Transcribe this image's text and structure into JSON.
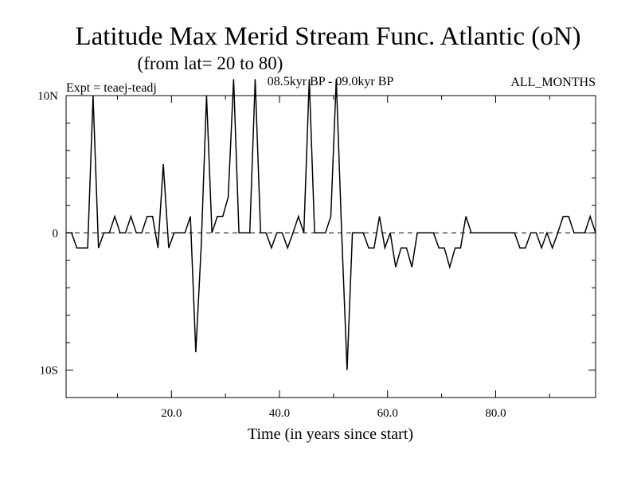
{
  "chart_data": {
    "type": "line",
    "title": "Latitude Max Merid Stream Func. Atlantic (oN)",
    "subtitle": "(from lat= 20 to 80)",
    "experiment": "Expt = teaej-teadj",
    "period": "08.5kyr BP - 09.0kyr BP",
    "season": "ALL_MONTHS",
    "xlabel": "Time (in years since start)",
    "ylabel": "",
    "xlim": [
      0.5,
      98.5
    ],
    "ylim": [
      -12,
      10
    ],
    "x_ticks": [
      {
        "value": 20,
        "label": "20.0"
      },
      {
        "value": 40,
        "label": "40.0"
      },
      {
        "value": 60,
        "label": "60.0"
      },
      {
        "value": 80,
        "label": "80.0"
      }
    ],
    "x_minor_ticks": [
      10,
      30,
      50,
      70,
      90
    ],
    "y_ticks": [
      {
        "value": 10,
        "label": "10N"
      },
      {
        "value": 0,
        "label": "0"
      },
      {
        "value": -10,
        "label": "10S"
      }
    ],
    "y_minor_ticks": [
      -12,
      -8,
      -6,
      -4,
      -2,
      2,
      4,
      6,
      8
    ],
    "zero_line": "dashed",
    "x": [
      0.5,
      1.5,
      2.5,
      3.5,
      4.5,
      5.5,
      6.5,
      7.5,
      8.5,
      9.5,
      10.5,
      11.5,
      12.5,
      13.5,
      14.5,
      15.5,
      16.5,
      17.5,
      18.5,
      19.5,
      20.5,
      21.5,
      22.5,
      23.5,
      24.5,
      25.5,
      26.5,
      27.5,
      28.5,
      29.5,
      30.5,
      31.5,
      32.5,
      33.5,
      34.5,
      35.5,
      36.5,
      37.5,
      38.5,
      39.5,
      40.5,
      41.5,
      42.5,
      43.5,
      44.5,
      45.5,
      46.5,
      47.5,
      48.5,
      49.5,
      50.5,
      51.5,
      52.5,
      53.5,
      54.5,
      55.5,
      56.5,
      57.5,
      58.5,
      59.5,
      60.5,
      61.5,
      62.5,
      63.5,
      64.5,
      65.5,
      66.5,
      67.5,
      68.5,
      69.5,
      70.5,
      71.5,
      72.5,
      73.5,
      74.5,
      75.5,
      76.5,
      77.5,
      78.5,
      79.5,
      80.5,
      81.5,
      82.5,
      83.5,
      84.5,
      85.5,
      86.5,
      87.5,
      88.5,
      89.5,
      90.5,
      91.5,
      92.5,
      93.5,
      94.5,
      95.5,
      96.5,
      97.5,
      98.5
    ],
    "series": [
      {
        "name": "Latitude Max Merid Stream Func",
        "color": "#000000",
        "values": [
          0,
          0,
          -1.1,
          -1.1,
          -1.1,
          10,
          -1.1,
          0,
          0,
          1.2,
          0,
          0,
          1.2,
          0,
          0,
          1.2,
          1.2,
          -1.1,
          5,
          -1.1,
          0,
          0,
          0,
          1.2,
          -8.7,
          -1.1,
          10,
          0,
          1.2,
          1.2,
          2.6,
          11.2,
          0,
          0,
          0,
          11.2,
          0,
          0,
          -1.1,
          0,
          0,
          -1.1,
          0,
          1.2,
          0,
          11.2,
          0,
          0,
          0,
          1.2,
          11.2,
          0,
          -10,
          0,
          0,
          0,
          -1.1,
          -1.1,
          1.2,
          -1.1,
          0,
          -2.5,
          -1.1,
          -1.1,
          -2.5,
          0,
          0,
          0,
          0,
          -1.1,
          -1.1,
          -2.5,
          -1.1,
          -1.1,
          1.2,
          0,
          0,
          0,
          0,
          0,
          0,
          0,
          0,
          0,
          -1.1,
          -1.1,
          0,
          0,
          -1.1,
          0,
          -1.1,
          0,
          1.2,
          1.2,
          0,
          0,
          0,
          1.2,
          0
        ]
      }
    ]
  }
}
